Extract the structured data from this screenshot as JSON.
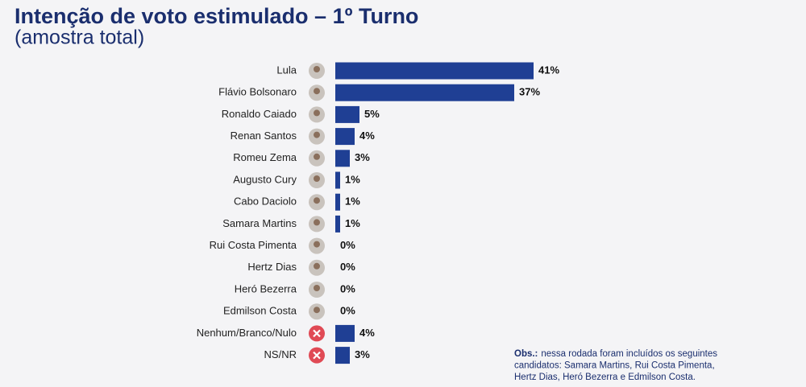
{
  "chart_data": {
    "type": "hbar",
    "title": "Intenção de voto estimulado – 1º Turno",
    "subtitle": "(amostra total)",
    "categories": [
      "Lula",
      "Flávio Bolsonaro",
      "Ronaldo Caiado",
      "Renan Santos",
      "Romeu Zema",
      "Augusto Cury",
      "Cabo Daciolo",
      "Samara Martins",
      "Rui Costa Pimenta",
      "Hertz Dias",
      "Heró Bezerra",
      "Edmilson Costa",
      "Nenhum/Branco/Nulo",
      "NS/NR"
    ],
    "values": [
      41,
      37,
      5,
      4,
      3,
      1,
      1,
      1,
      0,
      0,
      0,
      0,
      4,
      3
    ],
    "value_labels": [
      "41%",
      "37%",
      "5%",
      "4%",
      "3%",
      "1%",
      "1%",
      "1%",
      "0%",
      "0%",
      "0%",
      "0%",
      "4%",
      "3%"
    ],
    "color": "#1f3f94",
    "note_label": "Obs.:",
    "note": [
      "nessa rodada foram incluídos os seguintes",
      "candidatos: Samara Martins, Rui Costa Pimenta,",
      "Hertz Dias, Heró Bezerra e Edmilson Costa."
    ]
  }
}
